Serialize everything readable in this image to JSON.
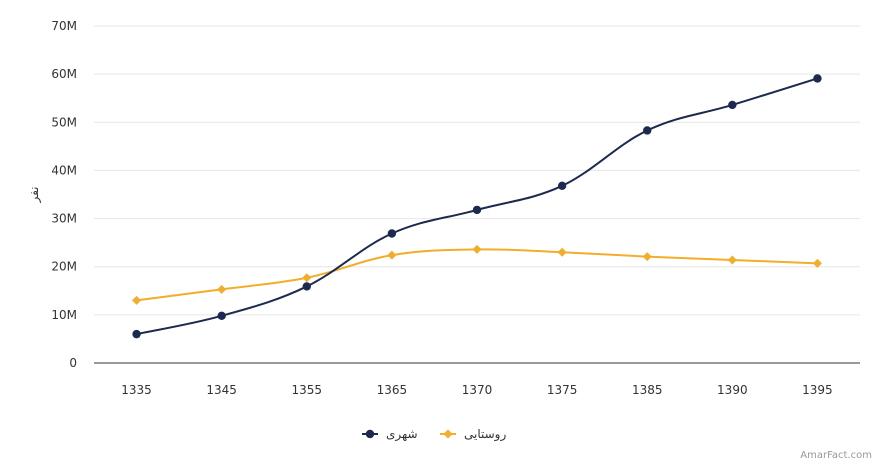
{
  "chart_data": {
    "type": "line",
    "ylabel": "نفر",
    "categories": [
      "1335",
      "1345",
      "1355",
      "1365",
      "1370",
      "1375",
      "1385",
      "1390",
      "1395"
    ],
    "ylim": [
      0,
      70000000
    ],
    "yticks": [
      0,
      10000000,
      20000000,
      30000000,
      40000000,
      50000000,
      60000000,
      70000000
    ],
    "ytick_labels": [
      "0",
      "10M",
      "20M",
      "30M",
      "40M",
      "50M",
      "60M",
      "70M"
    ],
    "grid": true,
    "legend_position": "bottom-center",
    "series": [
      {
        "name": "شهری",
        "color": "#1b2a4e",
        "marker": "circle",
        "values": [
          6000000,
          9800000,
          15900000,
          26900000,
          31800000,
          36800000,
          48300000,
          53600000,
          59100000
        ]
      },
      {
        "name": "روستایی",
        "color": "#f2ad2b",
        "marker": "diamond",
        "values": [
          13000000,
          15300000,
          17700000,
          22400000,
          23600000,
          23000000,
          22100000,
          21400000,
          20700000
        ]
      }
    ]
  },
  "credit": "AmarFact.com"
}
